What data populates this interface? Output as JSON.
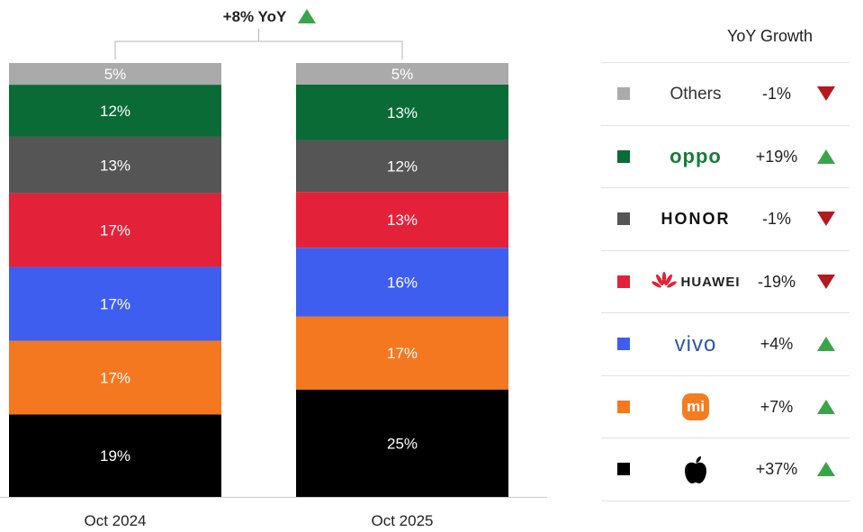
{
  "chart_data": {
    "type": "bar",
    "stacked": true,
    "categories": [
      "Oct 2024",
      "Oct 2025"
    ],
    "series": [
      {
        "name": "Apple",
        "values": [
          19,
          25
        ],
        "color": "#000000"
      },
      {
        "name": "Xiaomi",
        "values": [
          17,
          17
        ],
        "color": "#f47820"
      },
      {
        "name": "vivo",
        "values": [
          17,
          16
        ],
        "color": "#3e5ef0"
      },
      {
        "name": "HUAWEI",
        "values": [
          17,
          13
        ],
        "color": "#e3223a"
      },
      {
        "name": "HONOR",
        "values": [
          13,
          12
        ],
        "color": "#555555"
      },
      {
        "name": "OPPO",
        "values": [
          12,
          13
        ],
        "color": "#0b6b37"
      },
      {
        "name": "Others",
        "values": [
          5,
          5
        ],
        "color": "#aaaaaa"
      }
    ],
    "labels": [
      [
        "19%",
        "17%",
        "17%",
        "17%",
        "13%",
        "12%",
        "5%"
      ],
      [
        "25%",
        "17%",
        "16%",
        "13%",
        "12%",
        "13%",
        "5%"
      ]
    ],
    "annotation": "+8% YoY",
    "annotation_direction": "up",
    "ylim": [
      0,
      100
    ]
  },
  "legend": {
    "title": "YoY Growth",
    "items": [
      {
        "name": "Others",
        "brand_text": "Others",
        "growth": "-1%",
        "direction": "down",
        "color": "#aaaaaa",
        "icon": "square-swatch"
      },
      {
        "name": "OPPO",
        "brand_text": "oppo",
        "growth": "+19%",
        "direction": "up",
        "color": "#0b6b37",
        "icon": "oppo-logo"
      },
      {
        "name": "HONOR",
        "brand_text": "HONOR",
        "growth": "-1%",
        "direction": "down",
        "color": "#555555",
        "icon": "honor-logo"
      },
      {
        "name": "HUAWEI",
        "brand_text": "HUAWEI",
        "growth": "-19%",
        "direction": "down",
        "color": "#e3223a",
        "icon": "huawei-logo"
      },
      {
        "name": "vivo",
        "brand_text": "vivo",
        "growth": "+4%",
        "direction": "up",
        "color": "#3e5ef0",
        "icon": "vivo-logo"
      },
      {
        "name": "Xiaomi",
        "brand_text": "mi",
        "growth": "+7%",
        "direction": "up",
        "color": "#f47820",
        "icon": "xiaomi-logo"
      },
      {
        "name": "Apple",
        "brand_text": "",
        "growth": "+37%",
        "direction": "up",
        "color": "#000000",
        "icon": "apple-logo"
      }
    ]
  },
  "colors": {
    "up": "#3aa44a",
    "down": "#b3191f",
    "divider": "#e2e2e2"
  }
}
